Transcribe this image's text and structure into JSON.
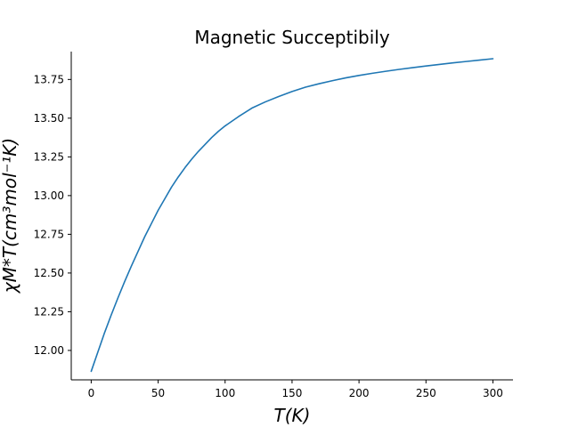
{
  "chart_data": {
    "type": "line",
    "title": "Magnetic Succeptibily",
    "xlabel": "T(K)",
    "ylabel": "χM*T(cm³mol⁻¹K)",
    "xlim": [
      -14.9,
      315
    ],
    "ylim": [
      11.81,
      13.93
    ],
    "xticks": [
      0,
      50,
      100,
      150,
      200,
      250,
      300
    ],
    "xtick_labels": [
      "0",
      "50",
      "100",
      "150",
      "200",
      "250",
      "300"
    ],
    "yticks": [
      12.0,
      12.25,
      12.5,
      12.75,
      13.0,
      13.25,
      13.5,
      13.75
    ],
    "ytick_labels": [
      "12.00",
      "12.25",
      "12.50",
      "12.75",
      "13.00",
      "13.25",
      "13.50",
      "13.75"
    ],
    "grid": false,
    "legend": "none",
    "series": [
      {
        "color": "#1f77b4",
        "x": [
          0,
          5,
          10,
          15,
          20,
          25,
          30,
          35,
          40,
          45,
          50,
          55,
          60,
          65,
          70,
          75,
          80,
          85,
          90,
          95,
          100,
          110,
          120,
          130,
          140,
          150,
          160,
          170,
          180,
          190,
          200,
          210,
          220,
          230,
          240,
          250,
          260,
          270,
          280,
          290,
          300
        ],
        "y": [
          11.865,
          11.99,
          12.115,
          12.23,
          12.34,
          12.445,
          12.545,
          12.64,
          12.735,
          12.82,
          12.905,
          12.98,
          13.055,
          13.12,
          13.18,
          13.235,
          13.285,
          13.33,
          13.375,
          13.415,
          13.45,
          13.51,
          13.565,
          13.605,
          13.64,
          13.672,
          13.7,
          13.722,
          13.742,
          13.76,
          13.776,
          13.79,
          13.803,
          13.815,
          13.826,
          13.837,
          13.847,
          13.857,
          13.866,
          13.875,
          13.884
        ]
      }
    ]
  }
}
